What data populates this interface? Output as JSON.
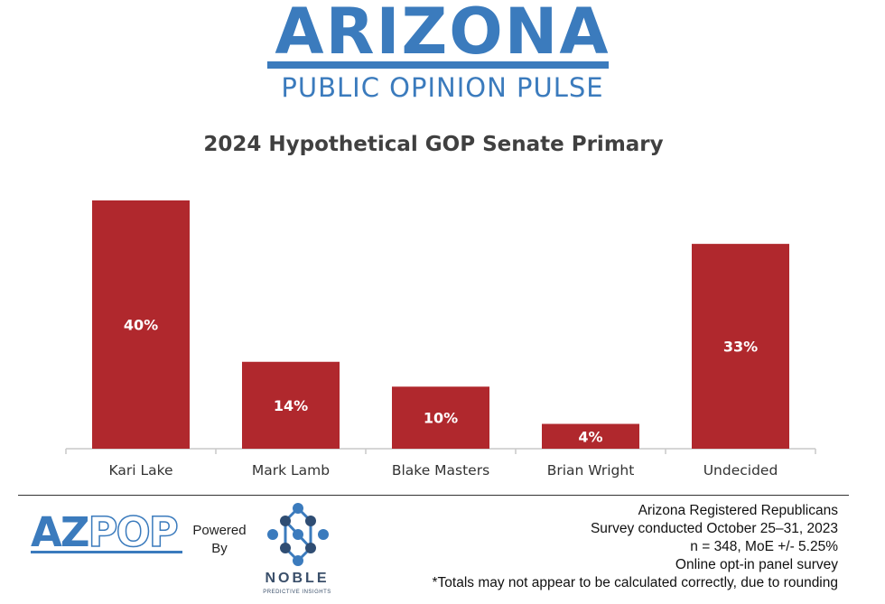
{
  "header": {
    "logo_main": "Arizona",
    "logo_sub": "PUBLIC OPINION PULSE"
  },
  "colors": {
    "bar": "#b0282d",
    "brand_blue": "#3b7bbd",
    "axis": "#c8c8c8"
  },
  "chart_data": {
    "type": "bar",
    "title": "2024 Hypothetical GOP Senate Primary",
    "categories": [
      "Kari Lake",
      "Mark Lamb",
      "Blake Masters",
      "Brian Wright",
      "Undecided"
    ],
    "values": [
      40,
      14,
      10,
      4,
      33
    ],
    "data_labels": [
      "40%",
      "14%",
      "10%",
      "4%",
      "33%"
    ],
    "xlabel": "",
    "ylabel": "",
    "ylim": [
      0,
      40
    ],
    "grid": false,
    "legend": "none"
  },
  "footer": {
    "azpop_az": "AZ",
    "azpop_pop": "POP",
    "powered_line1": "Powered",
    "powered_line2": "By",
    "noble_name": "NOBLE",
    "noble_sub": "PREDICTIVE INSIGHTS",
    "notes": [
      "Arizona Registered Republicans",
      "Survey conducted October 25–31, 2023",
      "n = 348, MoE +/- 5.25%",
      "Online opt-in panel survey",
      "*Totals may not appear to be calculated correctly, due to rounding"
    ]
  }
}
